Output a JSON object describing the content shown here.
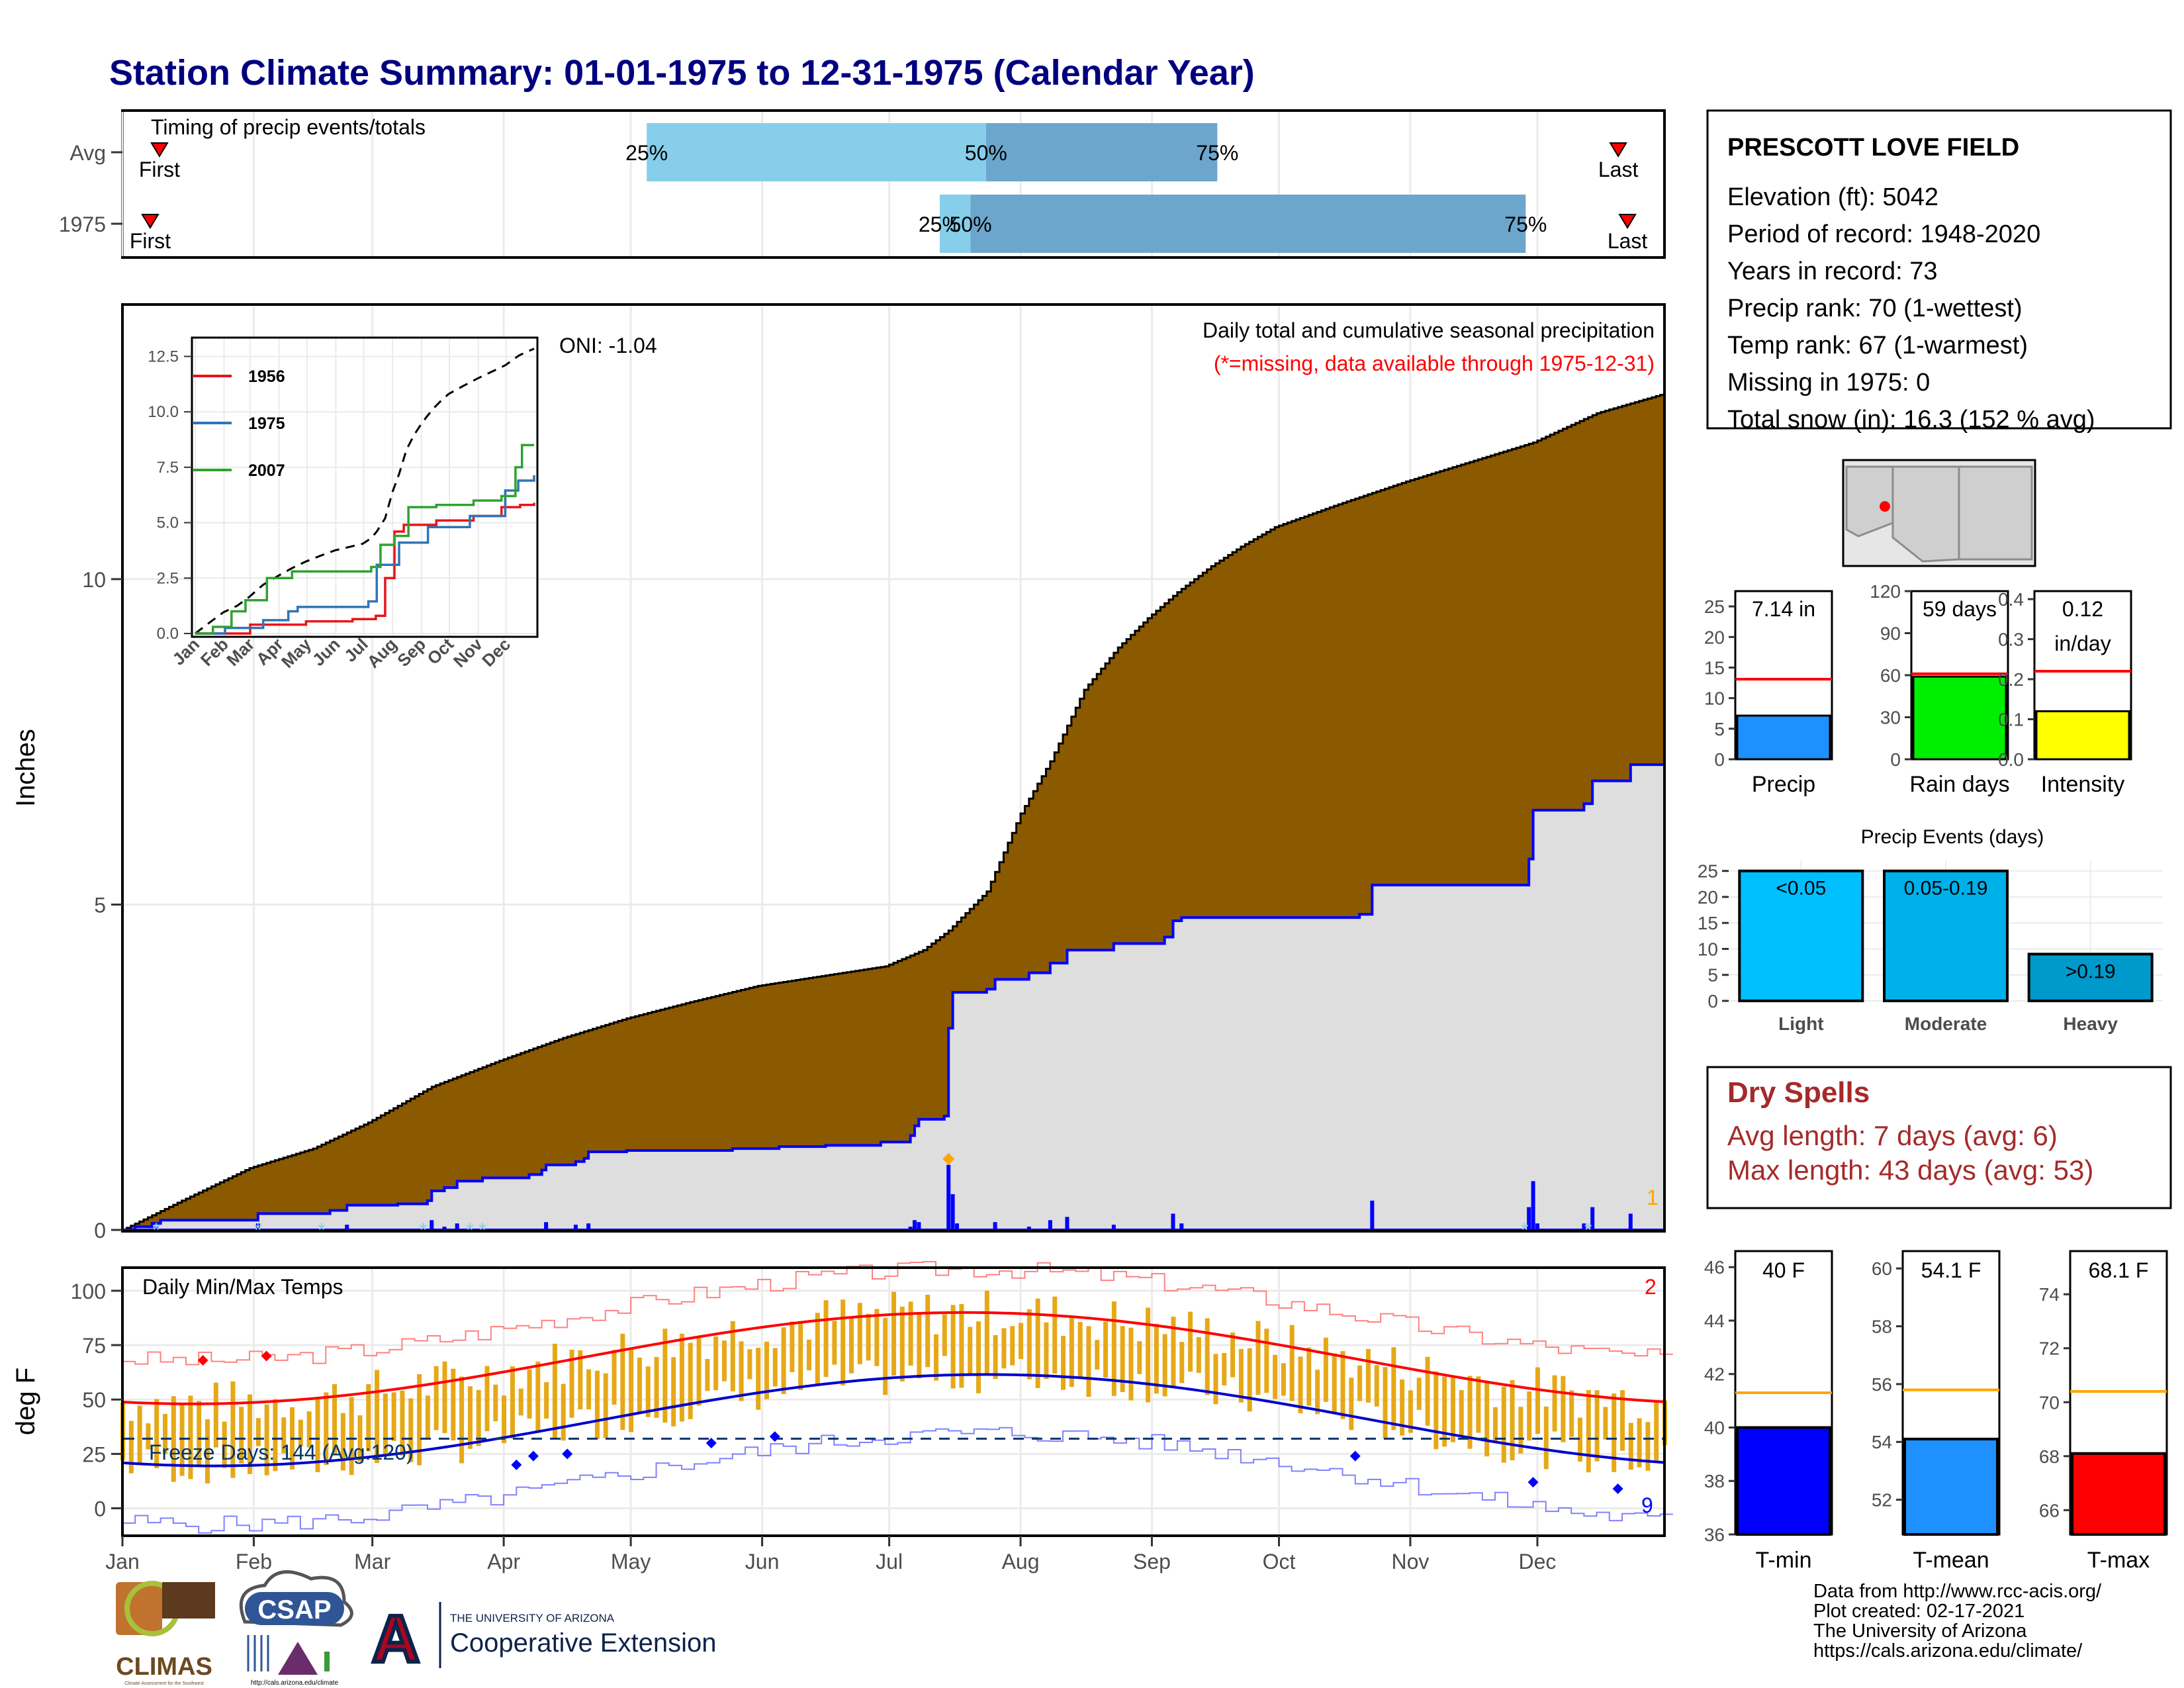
{
  "title": "Station Climate Summary: 01-01-1975 to 12-31-1975 (Calendar Year)",
  "timing": {
    "title": "Timing of precip events/totals",
    "rows": [
      {
        "label": "Avg",
        "p25": 0.34,
        "p50": 0.56,
        "p75": 0.71,
        "first": 0.024,
        "last": 0.97
      },
      {
        "label": "1975",
        "p25": 0.53,
        "p50": 0.55,
        "p75": 0.91,
        "first": 0.018,
        "last": 0.976
      }
    ],
    "pct_labels": [
      "25%",
      "50%",
      "75%"
    ],
    "first_label": "First",
    "last_label": "Last"
  },
  "station": {
    "name": "PRESCOTT LOVE FIELD",
    "lines": [
      "Elevation (ft): 5042",
      "Period of record: 1948-2020",
      "Years in record: 73",
      "Precip rank: 70 (1-wettest)",
      "Temp rank: 67 (1-warmest)",
      "Missing in 1975: 0",
      "Total snow (in): 16.3 (152 % avg)"
    ]
  },
  "precip_main": {
    "ylabel": "Inches",
    "title": "Daily total and cumulative seasonal precipitation",
    "missing_note": "(*=missing, data available through 1975-12-31)",
    "oni": "ONI: -1.04",
    "yticks": [
      0,
      5,
      10
    ],
    "ylim": [
      0,
      14.2
    ],
    "count_label": "1",
    "avg_cumulative": [
      [
        1,
        0
      ],
      [
        15,
        0.45
      ],
      [
        31,
        0.95
      ],
      [
        46,
        1.25
      ],
      [
        59,
        1.65
      ],
      [
        74,
        2.2
      ],
      [
        90,
        2.6
      ],
      [
        105,
        2.95
      ],
      [
        120,
        3.25
      ],
      [
        135,
        3.5
      ],
      [
        151,
        3.75
      ],
      [
        166,
        3.9
      ],
      [
        181,
        4.05
      ],
      [
        190,
        4.3
      ],
      [
        196,
        4.6
      ],
      [
        205,
        5.2
      ],
      [
        213,
        6.4
      ],
      [
        220,
        7.2
      ],
      [
        228,
        8.3
      ],
      [
        236,
        8.95
      ],
      [
        243,
        9.4
      ],
      [
        250,
        9.8
      ],
      [
        258,
        10.2
      ],
      [
        265,
        10.5
      ],
      [
        273,
        10.8
      ],
      [
        288,
        11.15
      ],
      [
        304,
        11.5
      ],
      [
        319,
        11.8
      ],
      [
        334,
        12.1
      ],
      [
        349,
        12.55
      ],
      [
        365,
        12.85
      ]
    ],
    "cumulative_1975": [
      [
        1,
        0
      ],
      [
        4,
        0.05
      ],
      [
        8,
        0.1
      ],
      [
        10,
        0.15
      ],
      [
        20,
        0.15
      ],
      [
        33,
        0.25
      ],
      [
        50,
        0.3
      ],
      [
        54,
        0.38
      ],
      [
        66,
        0.4
      ],
      [
        73,
        0.45
      ],
      [
        74,
        0.6
      ],
      [
        77,
        0.65
      ],
      [
        80,
        0.75
      ],
      [
        86,
        0.8
      ],
      [
        97,
        0.85
      ],
      [
        100,
        0.92
      ],
      [
        101,
        1.0
      ],
      [
        108,
        1.05
      ],
      [
        110,
        1.1
      ],
      [
        111,
        1.2
      ],
      [
        120,
        1.22
      ],
      [
        145,
        1.25
      ],
      [
        156,
        1.28
      ],
      [
        167,
        1.3
      ],
      [
        180,
        1.35
      ],
      [
        187,
        1.45
      ],
      [
        188,
        1.6
      ],
      [
        189,
        1.7
      ],
      [
        195,
        1.75
      ],
      [
        196,
        3.1
      ],
      [
        197,
        3.65
      ],
      [
        205,
        3.7
      ],
      [
        207,
        3.85
      ],
      [
        215,
        3.95
      ],
      [
        220,
        4.1
      ],
      [
        224,
        4.3
      ],
      [
        235,
        4.4
      ],
      [
        247,
        4.5
      ],
      [
        249,
        4.75
      ],
      [
        251,
        4.8
      ],
      [
        293,
        4.85
      ],
      [
        296,
        5.3
      ],
      [
        333,
        5.7
      ],
      [
        334,
        6.45
      ],
      [
        346,
        6.55
      ],
      [
        348,
        6.9
      ],
      [
        357,
        7.15
      ],
      [
        365,
        7.14
      ]
    ],
    "daily_precip_1975": [
      [
        4,
        0.02
      ],
      [
        9,
        0.05
      ],
      [
        33,
        0.1
      ],
      [
        54,
        0.08
      ],
      [
        74,
        0.15
      ],
      [
        77,
        0.05
      ],
      [
        80,
        0.1
      ],
      [
        101,
        0.12
      ],
      [
        108,
        0.08
      ],
      [
        111,
        0.1
      ],
      [
        187,
        0.05
      ],
      [
        188,
        0.15
      ],
      [
        189,
        0.12
      ],
      [
        196,
        1.0
      ],
      [
        197,
        0.55
      ],
      [
        198,
        0.1
      ],
      [
        207,
        0.12
      ],
      [
        215,
        0.05
      ],
      [
        220,
        0.15
      ],
      [
        224,
        0.2
      ],
      [
        235,
        0.08
      ],
      [
        249,
        0.25
      ],
      [
        251,
        0.1
      ],
      [
        296,
        0.45
      ],
      [
        333,
        0.35
      ],
      [
        334,
        0.75
      ],
      [
        335,
        0.1
      ],
      [
        346,
        0.1
      ],
      [
        348,
        0.35
      ],
      [
        357,
        0.25
      ]
    ],
    "snow_markers": [
      9,
      33,
      48,
      72,
      83,
      86,
      332,
      347
    ],
    "max_marker_day": 196
  },
  "inset": {
    "yticks": [
      0.0,
      2.5,
      5.0,
      7.5,
      10.0,
      12.5
    ],
    "yticklabels": [
      "0.0",
      "2.5",
      "5.0",
      "7.5",
      "10.0",
      "12.5"
    ],
    "months": [
      "Jan",
      "Feb",
      "Mar",
      "Apr",
      "May",
      "Jun",
      "Jul",
      "Aug",
      "Sep",
      "Oct",
      "Nov",
      "Dec"
    ],
    "series": [
      {
        "name": "1956",
        "color": "#e8141a",
        "values": [
          [
            1,
            0
          ],
          [
            60,
            0.4
          ],
          [
            120,
            0.55
          ],
          [
            170,
            0.65
          ],
          [
            195,
            0.8
          ],
          [
            205,
            2.5
          ],
          [
            215,
            4.6
          ],
          [
            225,
            4.9
          ],
          [
            260,
            5.1
          ],
          [
            300,
            5.3
          ],
          [
            330,
            5.7
          ],
          [
            350,
            5.8
          ],
          [
            365,
            5.9
          ]
        ]
      },
      {
        "name": "1975",
        "color": "#2e75b6",
        "values": [
          [
            1,
            0
          ],
          [
            33,
            0.25
          ],
          [
            74,
            0.6
          ],
          [
            101,
            1.0
          ],
          [
            111,
            1.2
          ],
          [
            187,
            1.45
          ],
          [
            196,
            3.1
          ],
          [
            220,
            4.1
          ],
          [
            251,
            4.8
          ],
          [
            296,
            5.3
          ],
          [
            334,
            6.45
          ],
          [
            348,
            6.9
          ],
          [
            365,
            7.14
          ]
        ]
      },
      {
        "name": "2007",
        "color": "#2fa22f",
        "values": [
          [
            1,
            0
          ],
          [
            20,
            0.3
          ],
          [
            40,
            1.0
          ],
          [
            55,
            1.5
          ],
          [
            78,
            2.5
          ],
          [
            105,
            2.8
          ],
          [
            190,
            3.0
          ],
          [
            200,
            4.0
          ],
          [
            215,
            4.4
          ],
          [
            230,
            5.7
          ],
          [
            260,
            5.8
          ],
          [
            300,
            6.0
          ],
          [
            330,
            6.2
          ],
          [
            345,
            7.5
          ],
          [
            352,
            8.5
          ],
          [
            365,
            8.5
          ]
        ]
      }
    ],
    "avg_line_color": "#000000"
  },
  "temps": {
    "ylabel": "deg F",
    "title": "Daily Min/Max Temps",
    "freeze_label": "Freeze Days: 144 (Avg:120)",
    "yticks": [
      0,
      25,
      50,
      75,
      100
    ],
    "ylim": [
      -12,
      110
    ],
    "red_count": "2",
    "blue_count": "9",
    "freeze_line": 32
  },
  "x_months": [
    "Jan",
    "Feb",
    "Mar",
    "Apr",
    "May",
    "Jun",
    "Jul",
    "Aug",
    "Sep",
    "Oct",
    "Nov",
    "Dec"
  ],
  "small_bars": [
    {
      "label": "Precip",
      "value_label": "7.14 in",
      "value": 7.14,
      "avg": 13.1,
      "ymax": 27.5,
      "ticks": [
        0,
        5,
        10,
        15,
        20,
        25
      ],
      "color": "#1e90ff"
    },
    {
      "label": "Rain days",
      "value_label": "59 days",
      "value": 59,
      "avg": 61,
      "ymax": 120,
      "ticks": [
        0,
        30,
        60,
        90,
        120
      ],
      "color": "#00ee00"
    },
    {
      "label": "Intensity",
      "value_label": "0.12",
      "value_label2": "in/day",
      "value": 0.12,
      "avg": 0.22,
      "ymax": 0.42,
      "ticks": [
        0.0,
        0.1,
        0.2,
        0.3,
        0.4
      ],
      "ticklabels": [
        "0.0",
        "0.1",
        "0.2",
        "0.3",
        "0.4"
      ],
      "color": "#ffff00"
    }
  ],
  "precip_events": {
    "title": "Precip Events (days)",
    "categories": [
      "Light",
      "Moderate",
      "Heavy"
    ],
    "bar_labels": [
      "<0.05",
      "0.05-0.19",
      ">0.19"
    ],
    "values": [
      25,
      25,
      9
    ],
    "colors": [
      "#00bfff",
      "#00b0e8",
      "#0099cc"
    ],
    "ticks": [
      0,
      5,
      10,
      15,
      20,
      25
    ],
    "ymax": 27
  },
  "dry_spells": {
    "title": "Dry Spells",
    "lines": [
      "Avg length: 7 days (avg: 6)",
      "Max length: 43 days (avg: 53)"
    ],
    "color": "#a52a2a"
  },
  "temp_bars": [
    {
      "label": "T-min",
      "value_label": "40 F",
      "value": 40,
      "avg": 41.3,
      "ymin": 36,
      "ymax": 46.6,
      "ticks": [
        36,
        38,
        40,
        42,
        44,
        46
      ],
      "color": "#0000ff"
    },
    {
      "label": "T-mean",
      "value_label": "54.1 F",
      "value": 54.1,
      "avg": 55.8,
      "ymin": 50.8,
      "ymax": 60.6,
      "ticks": [
        52,
        54,
        56,
        58,
        60
      ],
      "color": "#1e90ff"
    },
    {
      "label": "T-max",
      "value_label": "68.1 F",
      "value": 68.1,
      "avg": 70.4,
      "ymin": 65.1,
      "ymax": 75.6,
      "ticks": [
        66,
        68,
        70,
        72,
        74
      ],
      "color": "#ff0000"
    }
  ],
  "footer": {
    "lines": [
      "Data from http://www.rcc-acis.org/",
      "Plot created: 02-17-2021",
      "The University of Arizona",
      "https://cals.arizona.edu/climate/"
    ],
    "logos": {
      "climas": "CLIMAS",
      "climas_sub": "Climate Assessment for the Southwest",
      "csap": "CSAP",
      "csap_url": "http://cals.arizona.edu/climate",
      "ua_top": "THE UNIVERSITY OF ARIZONA",
      "ua_main": "Cooperative Extension",
      "ua_letter": "A"
    }
  }
}
